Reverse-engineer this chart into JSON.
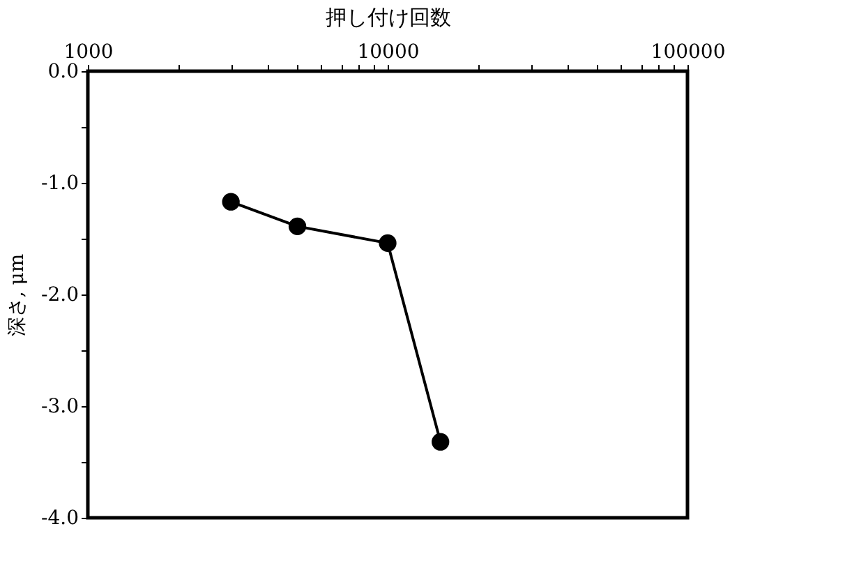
{
  "chart_data": {
    "type": "line",
    "xlabel": "押し付け回数",
    "ylabel": "深さ, μm",
    "log": "x",
    "grid": false,
    "marker": "circle",
    "line_style": "solid",
    "legend": false,
    "x": [
      3000,
      5000,
      10000,
      15000
    ],
    "series": [
      {
        "color": "#000000",
        "values": [
          -1.17,
          -1.39,
          -1.54,
          -3.32
        ]
      }
    ],
    "xlim": [
      1000,
      100000
    ],
    "xticks": [
      1000,
      {
        "value": 2000,
        "label": null
      },
      {
        "value": 3000,
        "label": null
      },
      {
        "value": 4000,
        "label": null
      },
      {
        "value": 5000,
        "label": null
      },
      {
        "value": 6000,
        "label": null
      },
      {
        "value": 7000,
        "label": null
      },
      {
        "value": 8000,
        "label": null
      },
      {
        "value": 9000,
        "label": null
      },
      10000,
      {
        "value": 20000,
        "label": null
      },
      {
        "value": 30000,
        "label": null
      },
      {
        "value": 40000,
        "label": null
      },
      {
        "value": 50000,
        "label": null
      },
      {
        "value": 60000,
        "label": null
      },
      {
        "value": 70000,
        "label": null
      },
      {
        "value": 80000,
        "label": null
      },
      {
        "value": 90000,
        "label": null
      },
      100000
    ],
    "ylim": [
      -4,
      0
    ],
    "yticks": [
      {
        "value": 0,
        "label": "0.0"
      },
      {
        "value": -0.5,
        "label": null
      },
      {
        "value": -1,
        "label": "-1.0"
      },
      {
        "value": -1.5,
        "label": null
      },
      {
        "value": -2,
        "label": "-2.0"
      },
      {
        "value": -2.5,
        "label": null
      },
      {
        "value": -3,
        "label": "-3.0"
      },
      {
        "value": -3.5,
        "label": null
      },
      {
        "value": -4,
        "label": "-4.0"
      }
    ]
  }
}
